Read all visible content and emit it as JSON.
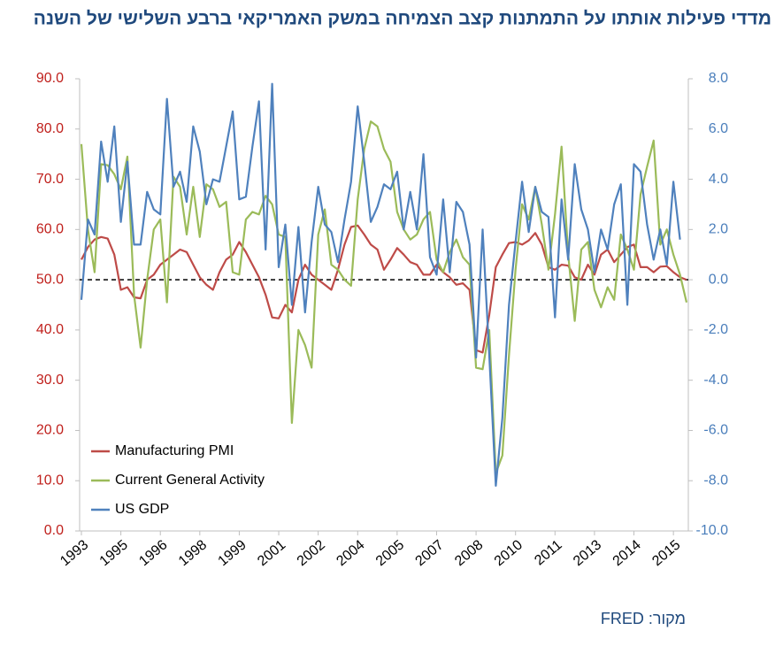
{
  "chart_data": {
    "type": "line",
    "title": "מדדי פעילות אותתו על התמתנות קצב הצמיחה במשק האמריקאי ברבע השלישי של השנה",
    "source": "מקור: FRED",
    "categories": [
      "1993",
      null,
      null,
      null,
      null,
      null,
      "1995",
      null,
      null,
      null,
      null,
      null,
      "1996",
      null,
      null,
      null,
      null,
      null,
      "1998",
      null,
      null,
      null,
      null,
      null,
      "1999",
      null,
      null,
      null,
      null,
      null,
      "2001",
      null,
      null,
      null,
      null,
      null,
      "2002",
      null,
      null,
      null,
      null,
      null,
      "2004",
      null,
      null,
      null,
      null,
      null,
      "2005",
      null,
      null,
      null,
      null,
      null,
      "2007",
      null,
      null,
      null,
      null,
      null,
      "2008",
      null,
      null,
      null,
      null,
      null,
      "2010",
      null,
      null,
      null,
      null,
      null,
      "2011",
      null,
      null,
      null,
      null,
      null,
      "2013",
      null,
      null,
      null,
      null,
      null,
      "2014",
      null,
      null,
      null,
      null,
      null,
      "2015",
      null,
      null
    ],
    "series": [
      {
        "name": "Manufacturing PMI",
        "color": "#be4b48",
        "axis": "y",
        "values": [
          54,
          56.5,
          58,
          58.5,
          58.2,
          55,
          48,
          48.5,
          46.5,
          46.3,
          50,
          51,
          53,
          54,
          55,
          56,
          55.5,
          53,
          50.5,
          49,
          48,
          51.5,
          54,
          55,
          57.5,
          55.5,
          53,
          50.5,
          47,
          42.5,
          42.3,
          45,
          43.5,
          50,
          53,
          51,
          50,
          49,
          48,
          52,
          57,
          60.5,
          60.8,
          59,
          57,
          56,
          52,
          54,
          56.3,
          55,
          53.5,
          53,
          51,
          51,
          53,
          51.5,
          50.5,
          49,
          49.3,
          48,
          36,
          35.5,
          43,
          52.5,
          55,
          57.3,
          57.5,
          57,
          57.8,
          59.3,
          57,
          52.5,
          52,
          53,
          52.8,
          50.5,
          50,
          53,
          51,
          55,
          56,
          53.5,
          55,
          56.5,
          57,
          52.5,
          52.5,
          51.5,
          52.6,
          52.7,
          51.5,
          50.5,
          50
        ]
      },
      {
        "name": "Current General Activity",
        "color": "#9bbb59",
        "axis": "y",
        "values": [
          77,
          60,
          51.5,
          73,
          72.8,
          71,
          68,
          74.5,
          47,
          36.5,
          50,
          60,
          62,
          45.5,
          70.5,
          68.5,
          59,
          68.5,
          58.5,
          69,
          68,
          64.5,
          65.5,
          51.5,
          51,
          62,
          63.5,
          63,
          66.7,
          65,
          59,
          58.5,
          21.5,
          40,
          37,
          32.5,
          59,
          64,
          53,
          52,
          50,
          48.8,
          66,
          76,
          81.5,
          80.5,
          76,
          73.5,
          63.5,
          60,
          58,
          59,
          62,
          63.5,
          54,
          51.5,
          55.5,
          58,
          54.5,
          53,
          32.5,
          32.2,
          40,
          11.5,
          15,
          35,
          52,
          65,
          62,
          68.5,
          61,
          52,
          63,
          76.5,
          55,
          41.8,
          56,
          57.5,
          48,
          44.5,
          48.5,
          46,
          59,
          56,
          52,
          67,
          72.5,
          77.7,
          57,
          60,
          55,
          51,
          45.5
        ]
      },
      {
        "name": "US GDP",
        "color": "#4f81bd",
        "axis": "y2",
        "values": [
          -0.8,
          2.4,
          1.8,
          5.5,
          3.9,
          6.1,
          2.3,
          4.7,
          1.4,
          1.4,
          3.5,
          2.8,
          2.6,
          7.2,
          3.7,
          4.3,
          3.1,
          6.1,
          5.1,
          3.0,
          4.0,
          3.9,
          5.3,
          6.7,
          3.2,
          3.3,
          5.3,
          7.1,
          1.2,
          7.8,
          0.5,
          2.2,
          -1.0,
          2.1,
          -1.3,
          1.5,
          3.7,
          2.2,
          1.9,
          0.7,
          2.4,
          3.9,
          6.9,
          4.7,
          2.3,
          2.9,
          3.8,
          3.6,
          4.3,
          2.0,
          3.5,
          2.0,
          5.0,
          0.9,
          0.2,
          3.2,
          0.3,
          3.1,
          2.7,
          1.4,
          -3.1,
          2.0,
          -3.0,
          -8.2,
          -5.5,
          -1.0,
          1.5,
          3.9,
          1.9,
          3.7,
          2.7,
          2.5,
          -1.5,
          3.2,
          0.8,
          4.6,
          2.8,
          2.0,
          0.3,
          2.0,
          1.2,
          3.0,
          3.8,
          -1.0,
          4.6,
          4.3,
          2.2,
          0.8,
          2.0,
          0.6,
          3.9,
          1.6,
          null
        ]
      }
    ],
    "ylim": [
      0,
      90
    ],
    "yticks": [
      {
        "value": 0,
        "label": "0.0"
      },
      {
        "value": 10,
        "label": "10.0"
      },
      {
        "value": 20,
        "label": "20.0"
      },
      {
        "value": 30,
        "label": "30.0"
      },
      {
        "value": 40,
        "label": "40.0"
      },
      {
        "value": 50,
        "label": "50.0"
      },
      {
        "value": 60,
        "label": "60.0"
      },
      {
        "value": 70,
        "label": "70.0"
      },
      {
        "value": 80,
        "label": "80.0"
      },
      {
        "value": 90,
        "label": "90.0"
      }
    ],
    "y2lim": [
      -10,
      8
    ],
    "y2ticks": [
      {
        "value": -10,
        "label": "-10.0"
      },
      {
        "value": -8,
        "label": "-8.0"
      },
      {
        "value": -6,
        "label": "-6.0"
      },
      {
        "value": -4,
        "label": "-4.0"
      },
      {
        "value": -2,
        "label": "-2.0"
      },
      {
        "value": 0,
        "label": "0.0"
      },
      {
        "value": 2,
        "label": "2.0"
      },
      {
        "value": 4,
        "label": "4.0"
      },
      {
        "value": 6,
        "label": "6.0"
      },
      {
        "value": 8,
        "label": "8.0"
      }
    ],
    "ytick_color": "#c0201c",
    "y2tick_color": "#4a7ebb",
    "reference_line": 50,
    "legend": "lower left"
  }
}
